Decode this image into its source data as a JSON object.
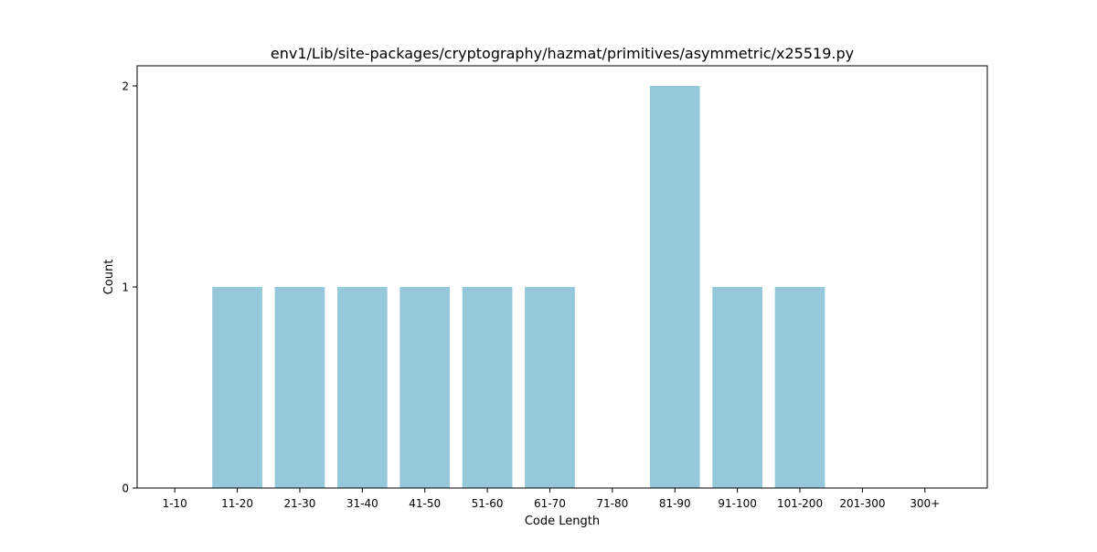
{
  "chart_data": {
    "type": "bar",
    "title": "env1/Lib/site-packages/cryptography/hazmat/primitives/asymmetric/x25519.py",
    "xlabel": "Code Length",
    "ylabel": "Count",
    "categories": [
      "1-10",
      "11-20",
      "21-30",
      "31-40",
      "41-50",
      "51-60",
      "61-70",
      "71-80",
      "81-90",
      "91-100",
      "101-200",
      "201-300",
      "300+"
    ],
    "values": [
      0,
      1,
      1,
      1,
      1,
      1,
      1,
      0,
      2,
      1,
      1,
      0,
      0
    ],
    "yticks": [
      0,
      1,
      2
    ],
    "ylim": [
      0,
      2.1
    ],
    "grid": false,
    "legend": "none",
    "bar_color": "#96c8dc"
  }
}
